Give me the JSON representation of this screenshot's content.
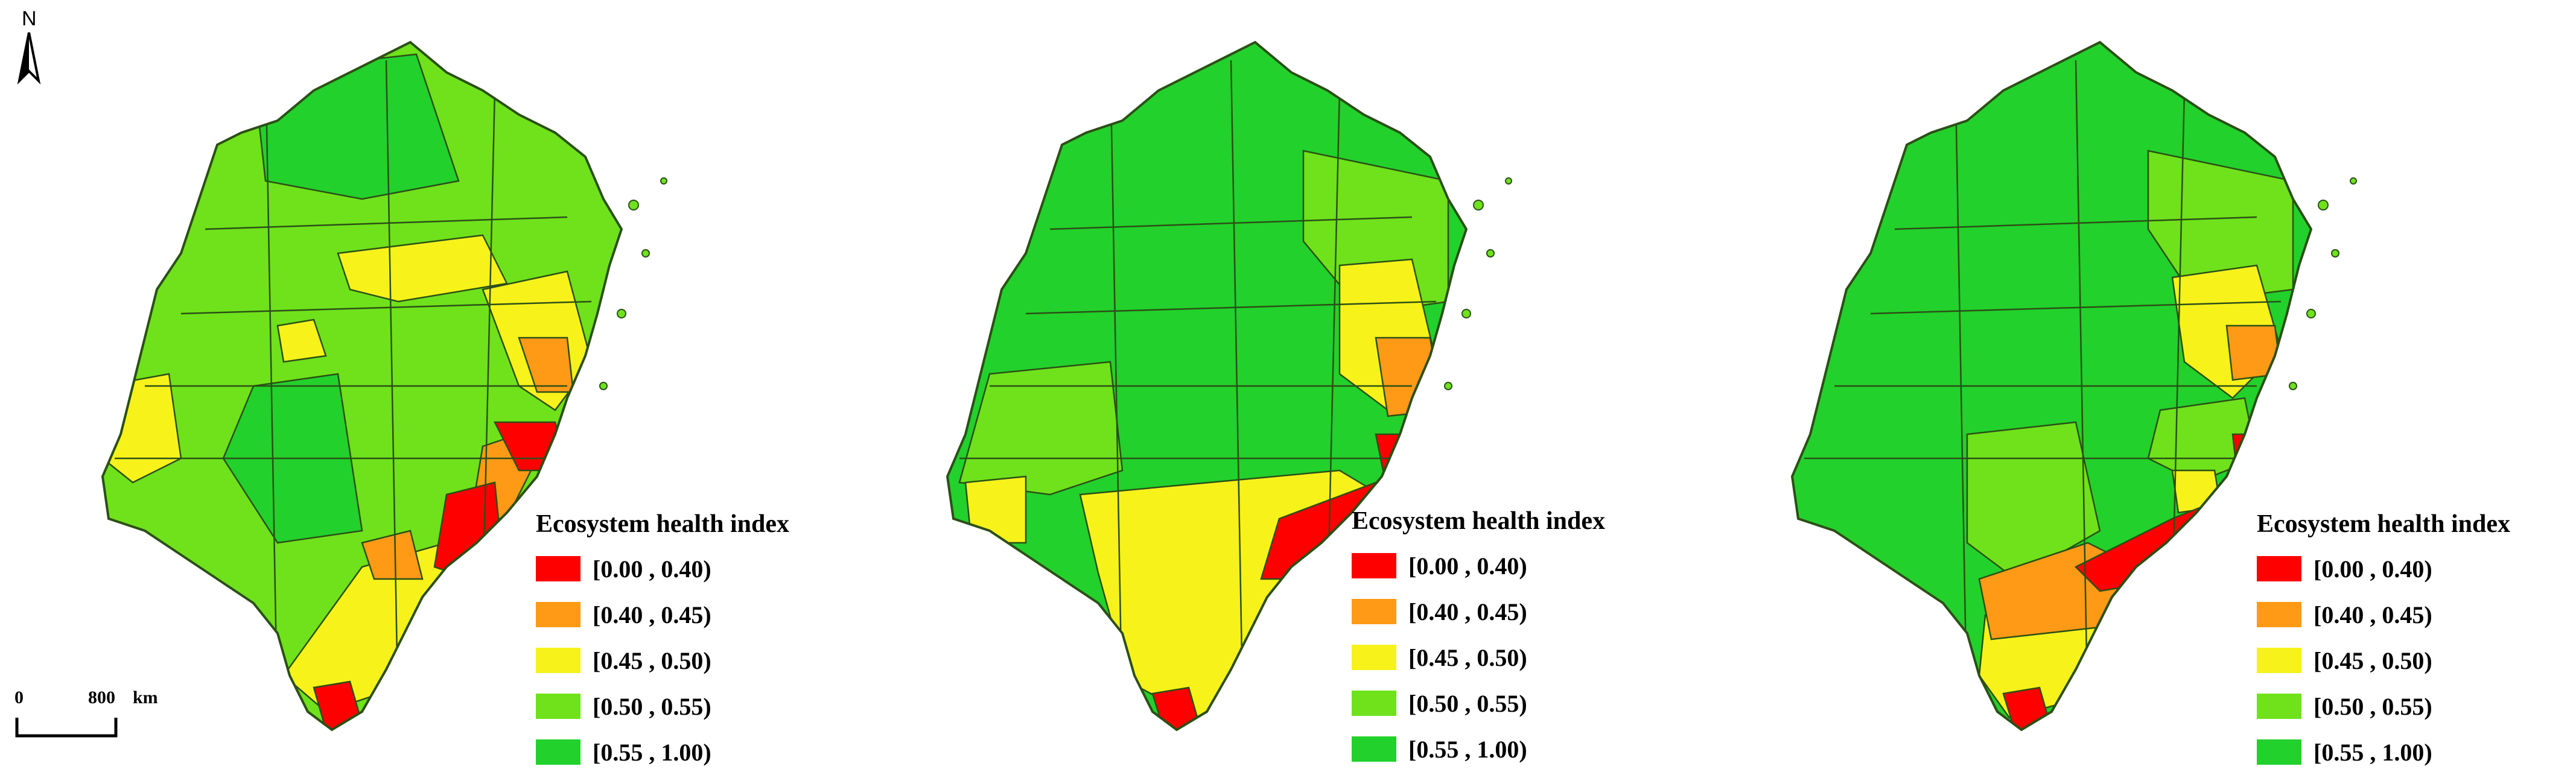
{
  "north_arrow": {
    "label": "N"
  },
  "scale_bar": {
    "start_label": "0",
    "end_label": "800",
    "unit": "km"
  },
  "legend": {
    "title": "Ecosystem health index",
    "items": [
      {
        "label": "[0.00 , 0.40)",
        "color": "#ff0000"
      },
      {
        "label": "[0.40 , 0.45)",
        "color": "#ff9a16"
      },
      {
        "label": "[0.45 , 0.50)",
        "color": "#f7f21a"
      },
      {
        "label": "[0.50 , 0.55)",
        "color": "#6fe21b"
      },
      {
        "label": "[0.55 , 1.00)",
        "color": "#22d12b"
      }
    ]
  },
  "colors": {
    "boundary": "#2b4f16",
    "background": "#ffffff"
  },
  "maps": [
    {
      "dominant_class": "[0.50 , 0.55)",
      "zones": [
        "[0.50 , 0.55)",
        "[0.55 , 1.00)",
        "[0.45 , 0.50)",
        "[0.00 , 0.40)",
        "[0.40 , 0.45)"
      ]
    },
    {
      "dominant_class": "[0.55 , 1.00)",
      "zones": [
        "[0.55 , 1.00)",
        "[0.50 , 0.55)",
        "[0.45 , 0.50)",
        "[0.00 , 0.40)",
        "[0.40 , 0.45)"
      ]
    },
    {
      "dominant_class": "[0.55 , 1.00)",
      "zones": [
        "[0.55 , 1.00)",
        "[0.50 , 0.55)",
        "[0.45 , 0.50)",
        "[0.00 , 0.40)",
        "[0.40 , 0.45)"
      ]
    }
  ]
}
